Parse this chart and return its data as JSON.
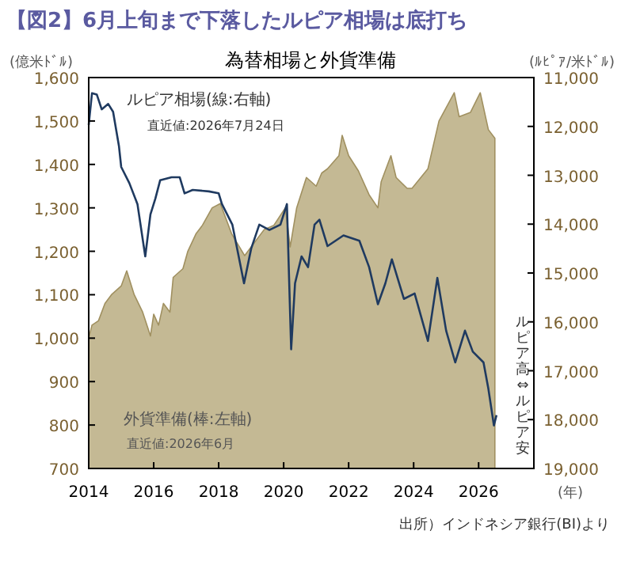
{
  "chart_data": {
    "type": "line",
    "title": "【図2】6月上旬まで下落したルピア相場は底打ち",
    "subtitle": "為替相場と外貨準備",
    "ylabel": "(億米ﾄﾞﾙ)",
    "y2label": "(ﾙﾋﾟｱ/米ﾄﾞﾙ)",
    "xlabel": "(年)",
    "xlim": [
      2014,
      2027.7
    ],
    "xticks": [
      2014,
      2016,
      2018,
      2020,
      2022,
      2024,
      2026
    ],
    "ylim": [
      700,
      1600
    ],
    "yticks": [
      {
        "value": 700,
        "label": "700"
      },
      {
        "value": 800,
        "label": "800"
      },
      {
        "value": 900,
        "label": "900"
      },
      {
        "value": 1000,
        "label": "1,000"
      },
      {
        "value": 1100,
        "label": "1,100"
      },
      {
        "value": 1200,
        "label": "1,200"
      },
      {
        "value": 1300,
        "label": "1,300"
      },
      {
        "value": 1400,
        "label": "1,400"
      },
      {
        "value": 1500,
        "label": "1,500"
      },
      {
        "value": 1600,
        "label": "1,600"
      }
    ],
    "y2lim": [
      19000,
      11000
    ],
    "y2ticks": [
      {
        "value": 11000,
        "label": "11,000"
      },
      {
        "value": 12000,
        "label": "12,000"
      },
      {
        "value": 13000,
        "label": "13,000"
      },
      {
        "value": 14000,
        "label": "14,000"
      },
      {
        "value": 15000,
        "label": "15,000"
      },
      {
        "value": 16000,
        "label": "16,000"
      },
      {
        "value": 17000,
        "label": "17,000"
      },
      {
        "value": 18000,
        "label": "18,000"
      },
      {
        "value": 19000,
        "label": "19,000"
      }
    ],
    "grid": false,
    "series": [
      {
        "type": "area",
        "color": "#c4b994",
        "x": [
          2014,
          2014.1,
          2014.3,
          2014.5,
          2014.7,
          2015,
          2015.17,
          2015.4,
          2015.66,
          2015.9,
          2016,
          2016.15,
          2016.3,
          2016.5,
          2016.6,
          2016.9,
          2017.05,
          2017.3,
          2017.5,
          2017.8,
          2018.05,
          2018.4,
          2018.8,
          2019,
          2019.4,
          2019.7,
          2020.05,
          2020.2,
          2020.4,
          2020.7,
          2021,
          2021.17,
          2021.35,
          2021.7,
          2021.8,
          2022,
          2022.3,
          2022.63,
          2022.9,
          2023,
          2023.3,
          2023.46,
          2023.8,
          2023.95,
          2024.44,
          2024.78,
          2025.25,
          2025.4,
          2025.75,
          2026.05,
          2026.3,
          2026.5
        ],
        "values": [
          1000,
          1030,
          1040,
          1080,
          1100,
          1120,
          1155,
          1100,
          1060,
          1005,
          1055,
          1030,
          1080,
          1060,
          1140,
          1160,
          1200,
          1240,
          1260,
          1300,
          1310,
          1240,
          1190,
          1210,
          1250,
          1260,
          1300,
          1210,
          1300,
          1370,
          1350,
          1380,
          1390,
          1420,
          1467,
          1420,
          1385,
          1330,
          1300,
          1360,
          1420,
          1370,
          1345,
          1345,
          1390,
          1500,
          1565,
          1510,
          1520,
          1565,
          1480,
          1460
        ]
      },
      {
        "axis": "y2",
        "color": "#1f3a60",
        "x": [
          2014,
          2014.1,
          2014.25,
          2014.4,
          2014.6,
          2014.75,
          2014.93,
          2015,
          2015.25,
          2015.5,
          2015.74,
          2015.9,
          2016.05,
          2016.2,
          2016.55,
          2016.8,
          2016.95,
          2017.2,
          2017.7,
          2018,
          2018.1,
          2018.42,
          2018.78,
          2019,
          2019.25,
          2019.56,
          2019.9,
          2020.1,
          2020.23,
          2020.35,
          2020.55,
          2020.75,
          2020.95,
          2021.1,
          2021.35,
          2021.84,
          2022.33,
          2022.63,
          2022.9,
          2023.13,
          2023.33,
          2023.7,
          2024.03,
          2024.44,
          2024.73,
          2025,
          2025.28,
          2025.58,
          2025.82,
          2026.15,
          2026.3,
          2026.47,
          2026.55
        ],
        "values": [
          11970,
          11320,
          11350,
          11650,
          11540,
          11700,
          12400,
          12830,
          13160,
          13590,
          14660,
          13800,
          13480,
          13100,
          13040,
          13040,
          13370,
          13300,
          13330,
          13370,
          13590,
          14010,
          15210,
          14500,
          14010,
          14120,
          14010,
          13590,
          16560,
          15210,
          14660,
          14880,
          14010,
          13910,
          14450,
          14230,
          14340,
          14880,
          15640,
          15210,
          14720,
          15530,
          15420,
          16390,
          15100,
          16180,
          16830,
          16180,
          16610,
          16830,
          17370,
          18120,
          17910
        ]
      }
    ],
    "annotations": [
      "ルピア相場(線:右軸)",
      "直近値:2026年7月24日",
      "外貨準備(棒:左軸)",
      "直近値:2026年6月",
      "ルピア高⇔ルピア安",
      "出所）インドネシア銀行(BI)より"
    ]
  }
}
